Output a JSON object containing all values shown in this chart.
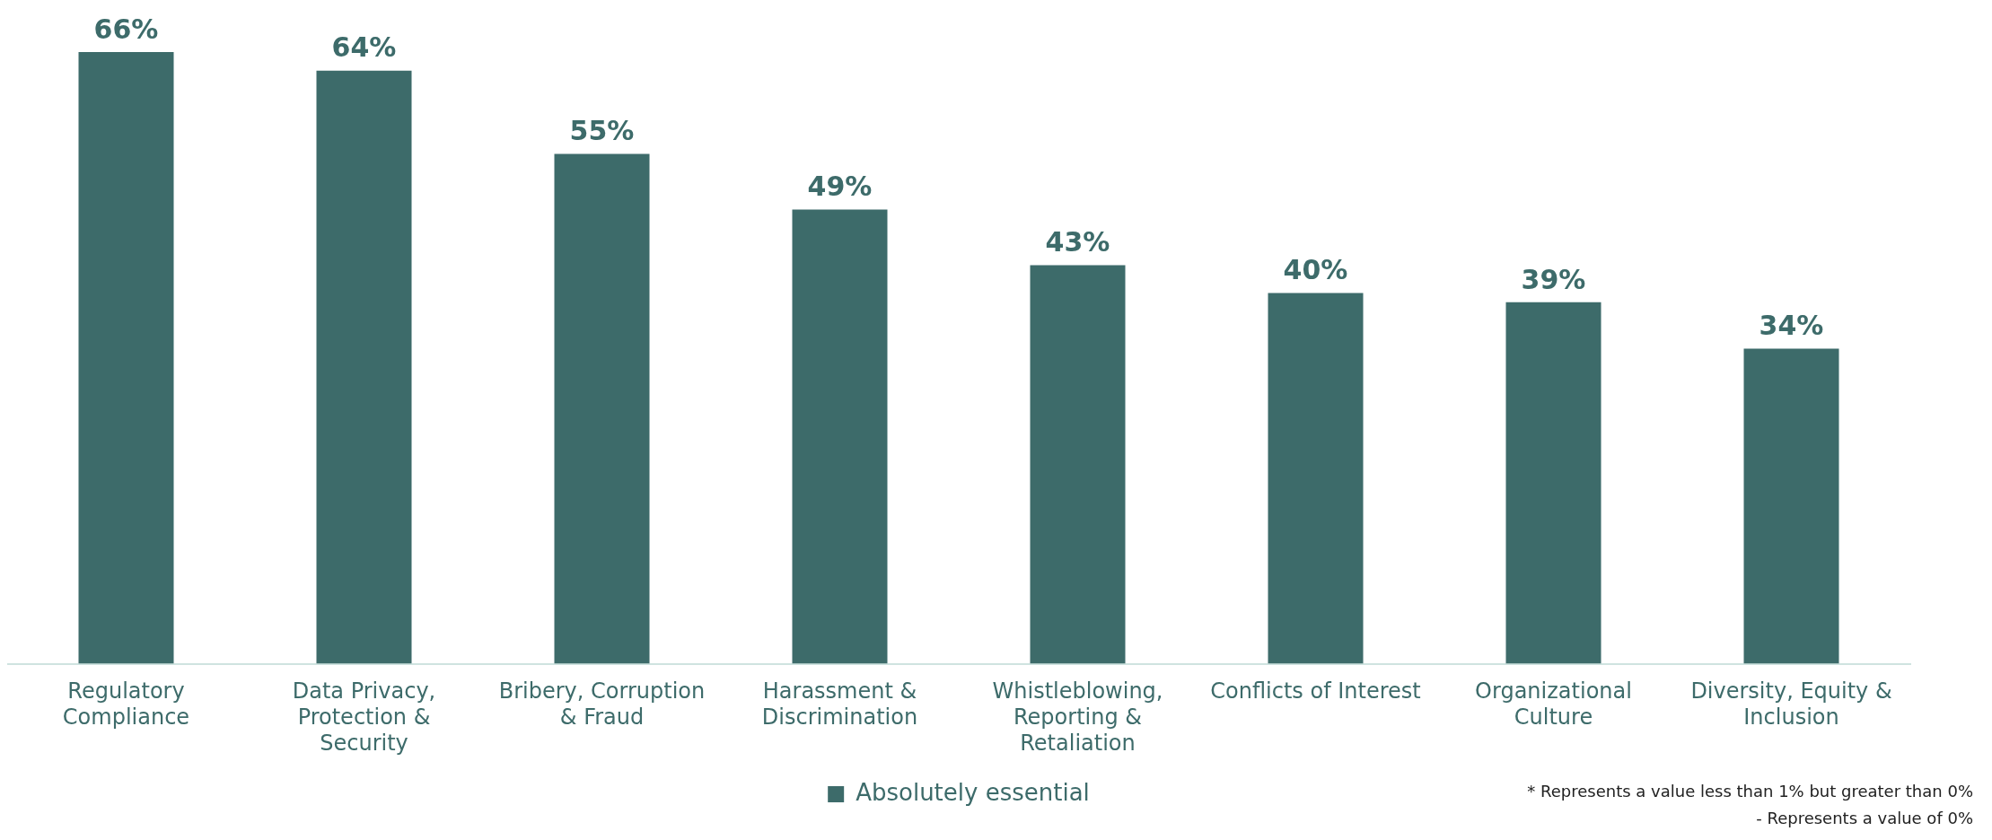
{
  "chart_data": {
    "type": "bar",
    "categories": [
      "Regulatory Compliance",
      "Data Privacy, Protection & Security",
      "Bribery, Corruption & Fraud",
      "Harassment & Discrimination",
      "Whistleblowing, Reporting & Retaliation",
      "Conflicts of Interest",
      "Organizational Culture",
      "Diversity, Equity & Inclusion"
    ],
    "series": [
      {
        "name": "Absolutely essential",
        "color": "#3d6b6a",
        "values": [
          66,
          64,
          55,
          49,
          43,
          40,
          39,
          34
        ],
        "value_labels": [
          "66%",
          "64%",
          "55%",
          "49%",
          "43%",
          "40%",
          "39%",
          "34%"
        ]
      }
    ],
    "tick_labels": "x",
    "grid": false,
    "legend": "bottom",
    "annotations": [
      "* Represents a value less than 1% but greater than 0%",
      "- Represents a value of 0%"
    ]
  }
}
